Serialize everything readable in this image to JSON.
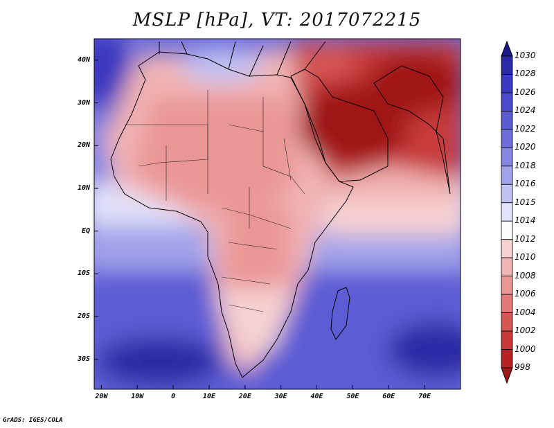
{
  "title": "MSLP [hPa], VT: 2017072215",
  "footer": "GrADS: IGES/COLA",
  "map": {
    "variable": "Mean sea level pressure",
    "units": "hPa",
    "valid_time": "2017072215",
    "lat_labels": [
      {
        "id": "40n",
        "label": "40N",
        "lat": 40
      },
      {
        "id": "30n",
        "label": "30N",
        "lat": 30
      },
      {
        "id": "20n",
        "label": "20N",
        "lat": 20
      },
      {
        "id": "10n",
        "label": "10N",
        "lat": 10
      },
      {
        "id": "eq",
        "label": "EQ",
        "lat": 0
      },
      {
        "id": "10s",
        "label": "10S",
        "lat": -10
      },
      {
        "id": "20s",
        "label": "20S",
        "lat": -20
      },
      {
        "id": "30s",
        "label": "30S",
        "lat": -30
      }
    ],
    "lon_labels": [
      {
        "id": "20w",
        "label": "20W",
        "lon": -20
      },
      {
        "id": "10w",
        "label": "10W",
        "lon": -10
      },
      {
        "id": "0",
        "label": "0",
        "lon": 0
      },
      {
        "id": "10e",
        "label": "10E",
        "lon": 10
      },
      {
        "id": "20e",
        "label": "20E",
        "lon": 20
      },
      {
        "id": "30e",
        "label": "30E",
        "lon": 30
      },
      {
        "id": "40e",
        "label": "40E",
        "lon": 40
      },
      {
        "id": "50e",
        "label": "50E",
        "lon": 50
      },
      {
        "id": "60e",
        "label": "60E",
        "lon": 60
      },
      {
        "id": "70e",
        "label": "70E",
        "lon": 70
      }
    ]
  },
  "colorbar": {
    "labels": [
      {
        "id": "1030",
        "value": "1030"
      },
      {
        "id": "1028",
        "value": "1028"
      },
      {
        "id": "1026",
        "value": "1026"
      },
      {
        "id": "1024",
        "value": "1024"
      },
      {
        "id": "1022",
        "value": "1022"
      },
      {
        "id": "1020",
        "value": "1020"
      },
      {
        "id": "1018",
        "value": "1018"
      },
      {
        "id": "1016",
        "value": "1016"
      },
      {
        "id": "1015",
        "value": "1015"
      },
      {
        "id": "1014",
        "value": "1014"
      },
      {
        "id": "1012",
        "value": "1012"
      },
      {
        "id": "1010",
        "value": "1010"
      },
      {
        "id": "1008",
        "value": "1008"
      },
      {
        "id": "1006",
        "value": "1006"
      },
      {
        "id": "1004",
        "value": "1004"
      },
      {
        "id": "1002",
        "value": "1002"
      },
      {
        "id": "1000",
        "value": "1000"
      },
      {
        "id": "998",
        "value": "998"
      }
    ],
    "colors": [
      "#1c1a8c",
      "#2b2aa6",
      "#3a39bf",
      "#4a4acc",
      "#5b5bd4",
      "#6e6edb",
      "#8686e2",
      "#a2a2ea",
      "#c2c2f2",
      "#e2e2fa",
      "#fcfcfc",
      "#f6d2d2",
      "#f1b4b4",
      "#ea9696",
      "#e27878",
      "#d65656",
      "#c83a3a",
      "#b52424",
      "#a01818"
    ]
  }
}
